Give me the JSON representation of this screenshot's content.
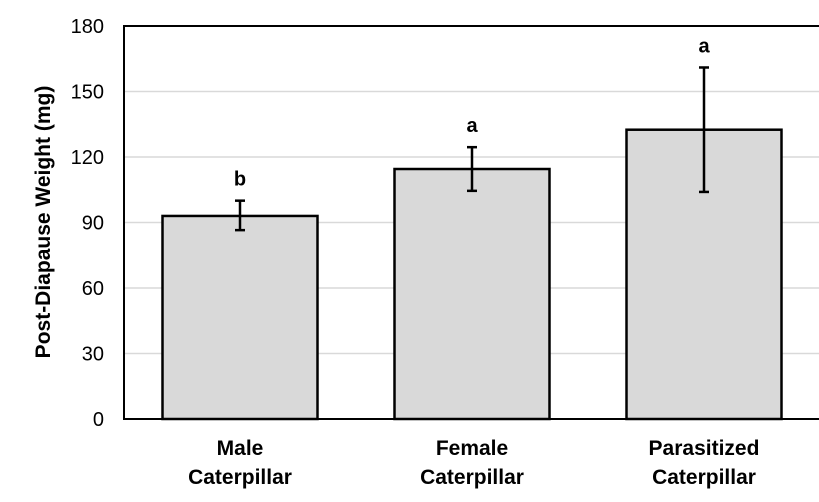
{
  "chart_data": {
    "type": "bar",
    "title": "",
    "xlabel": "",
    "ylabel": "Post-Diapause  Weight (mg)",
    "ylim": [
      0,
      180
    ],
    "yticks": [
      0,
      30,
      60,
      90,
      120,
      150,
      180
    ],
    "grid": "horizontal",
    "categories": [
      [
        "Male",
        "Caterpillar"
      ],
      [
        "Female",
        "Caterpillar"
      ],
      [
        "Parasitized",
        "Caterpillar"
      ]
    ],
    "values": [
      93,
      114.5,
      132.5
    ],
    "error_low": [
      86.5,
      104.5,
      104
    ],
    "error_high": [
      100,
      124.5,
      161
    ],
    "significance_labels": [
      "b",
      "a",
      "a"
    ],
    "colors": {
      "bar_fill": "#d9d9d9",
      "bar_stroke": "#000000",
      "grid": "#d9d9d9",
      "axis": "#000000"
    }
  }
}
